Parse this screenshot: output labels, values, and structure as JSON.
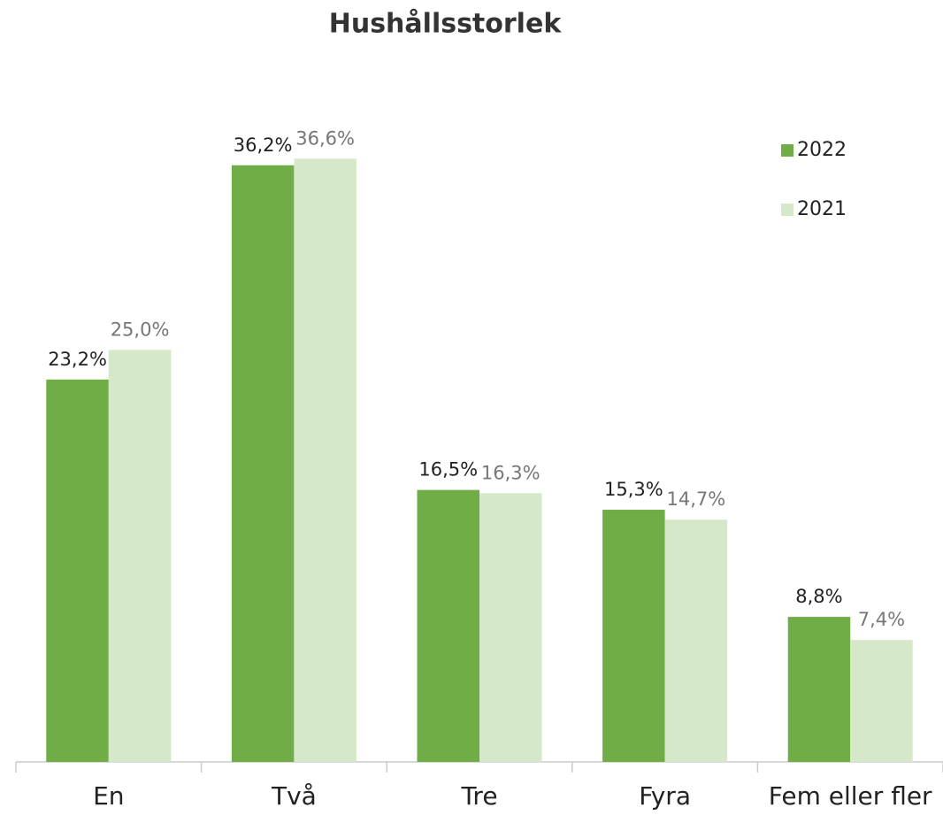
{
  "chart_data": {
    "type": "bar",
    "title": "Hushållsstorlek",
    "categories": [
      "En",
      "Två",
      "Tre",
      "Fyra",
      "Fem eller fler"
    ],
    "series": [
      {
        "name": "2022",
        "color": "#70ad47",
        "values": [
          23.2,
          36.2,
          16.5,
          15.3,
          8.8
        ],
        "value_labels": [
          "23,2%",
          "36,2%",
          "16,5%",
          "15,3%",
          "8,8%"
        ]
      },
      {
        "name": "2021",
        "color": "#d5e8c9",
        "values": [
          25.0,
          36.6,
          16.3,
          14.7,
          7.4
        ],
        "value_labels": [
          "25,0%",
          "36,6%",
          "16,3%",
          "14,7%",
          "7,4%"
        ]
      }
    ],
    "ylim": [
      0,
      40
    ],
    "legend": "top-right"
  }
}
